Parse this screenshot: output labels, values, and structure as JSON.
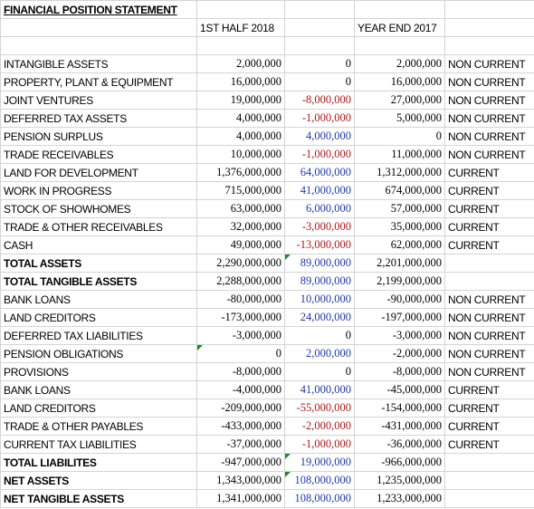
{
  "title": "FINANCIAL POSITION STATEMENT",
  "headers": {
    "col1": "1ST HALF 2018",
    "col3": "YEAR END 2017"
  },
  "colors": {
    "positive_change": "#1f3aa8",
    "negative_change": "#b01818",
    "note_marker": "#1a8a2a"
  },
  "rows": [
    {
      "label": "INTANGIBLE ASSETS",
      "h1_2018": "2,000,000",
      "change": "0",
      "ye_2017": "2,000,000",
      "class": "NON CURRENT"
    },
    {
      "label": "PROPERTY, PLANT & EQUIPMENT",
      "h1_2018": "16,000,000",
      "change": "0",
      "ye_2017": "16,000,000",
      "class": "NON CURRENT"
    },
    {
      "label": "JOINT VENTURES",
      "h1_2018": "19,000,000",
      "change": "-8,000,000",
      "ye_2017": "27,000,000",
      "class": "NON CURRENT"
    },
    {
      "label": "DEFERRED TAX ASSETS",
      "h1_2018": "4,000,000",
      "change": "-1,000,000",
      "ye_2017": "5,000,000",
      "class": "NON CURRENT"
    },
    {
      "label": "PENSION SURPLUS",
      "h1_2018": "4,000,000",
      "change": "4,000,000",
      "ye_2017": "0",
      "class": "NON CURRENT"
    },
    {
      "label": "TRADE RECEIVABLES",
      "h1_2018": "10,000,000",
      "change": "-1,000,000",
      "ye_2017": "11,000,000",
      "class": "NON CURRENT"
    },
    {
      "label": "LAND FOR DEVELOPMENT",
      "h1_2018": "1,376,000,000",
      "change": "64,000,000",
      "ye_2017": "1,312,000,000",
      "class": "CURRENT"
    },
    {
      "label": "WORK IN PROGRESS",
      "h1_2018": "715,000,000",
      "change": "41,000,000",
      "ye_2017": "674,000,000",
      "class": "CURRENT"
    },
    {
      "label": "STOCK OF SHOWHOMES",
      "h1_2018": "63,000,000",
      "change": "6,000,000",
      "ye_2017": "57,000,000",
      "class": "CURRENT"
    },
    {
      "label": "TRADE & OTHER RECEIVABLES",
      "h1_2018": "32,000,000",
      "change": "-3,000,000",
      "ye_2017": "35,000,000",
      "class": "CURRENT"
    },
    {
      "label": "CASH",
      "h1_2018": "49,000,000",
      "change": "-13,000,000",
      "ye_2017": "62,000,000",
      "class": "CURRENT"
    },
    {
      "label": "TOTAL ASSETS",
      "h1_2018": "2,290,000,000",
      "change": "89,000,000",
      "ye_2017": "2,201,000,000",
      "class": ""
    },
    {
      "label": "TOTAL TANGIBLE ASSETS",
      "h1_2018": "2,288,000,000",
      "change": "89,000,000",
      "ye_2017": "2,199,000,000",
      "class": ""
    },
    {
      "label": "BANK LOANS",
      "h1_2018": "-80,000,000",
      "change": "10,000,000",
      "ye_2017": "-90,000,000",
      "class": "NON CURRENT"
    },
    {
      "label": "LAND CREDITORS",
      "h1_2018": "-173,000,000",
      "change": "24,000,000",
      "ye_2017": "-197,000,000",
      "class": "NON CURRENT"
    },
    {
      "label": "DEFERRED TAX LIABILITIES",
      "h1_2018": "-3,000,000",
      "change": "0",
      "ye_2017": "-3,000,000",
      "class": "NON CURRENT"
    },
    {
      "label": "PENSION OBLIGATIONS",
      "h1_2018": "0",
      "change": "2,000,000",
      "ye_2017": "-2,000,000",
      "class": "NON CURRENT"
    },
    {
      "label": "PROVISIONS",
      "h1_2018": "-8,000,000",
      "change": "0",
      "ye_2017": "-8,000,000",
      "class": "NON CURRENT"
    },
    {
      "label": "BANK LOANS",
      "h1_2018": "-4,000,000",
      "change": "41,000,000",
      "ye_2017": "-45,000,000",
      "class": "CURRENT"
    },
    {
      "label": "LAND CREDITORS",
      "h1_2018": "-209,000,000",
      "change": "-55,000,000",
      "ye_2017": "-154,000,000",
      "class": "CURRENT"
    },
    {
      "label": "TRADE & OTHER PAYABLES",
      "h1_2018": "-433,000,000",
      "change": "-2,000,000",
      "ye_2017": "-431,000,000",
      "class": "CURRENT"
    },
    {
      "label": "CURRENT TAX LIABILITIES",
      "h1_2018": "-37,000,000",
      "change": "-1,000,000",
      "ye_2017": "-36,000,000",
      "class": "CURRENT"
    },
    {
      "label": "TOTAL LIABILITES",
      "h1_2018": "-947,000,000",
      "change": "19,000,000",
      "ye_2017": "-966,000,000",
      "class": ""
    },
    {
      "label": "NET ASSETS",
      "h1_2018": "1,343,000,000",
      "change": "108,000,000",
      "ye_2017": "1,235,000,000",
      "class": ""
    },
    {
      "label": "NET TANGIBLE ASSETS",
      "h1_2018": "1,341,000,000",
      "change": "108,000,000",
      "ye_2017": "1,233,000,000",
      "class": ""
    }
  ]
}
